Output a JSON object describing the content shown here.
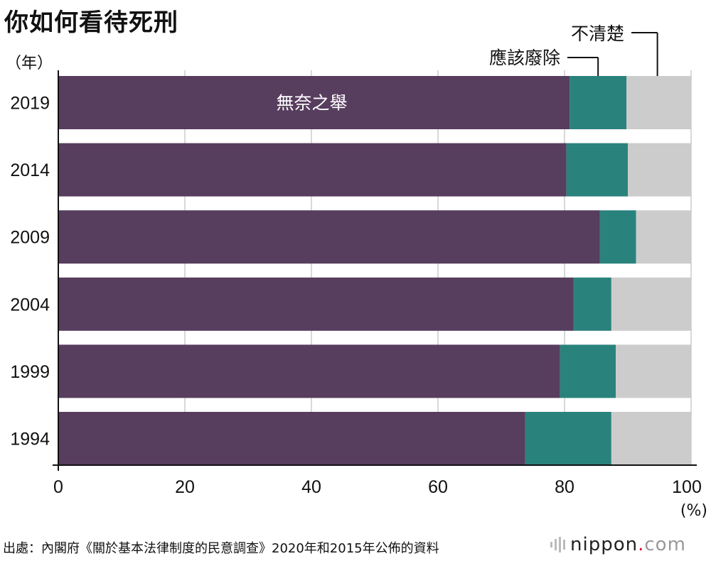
{
  "title": "你如何看待死刑",
  "chart_data": {
    "type": "bar",
    "orientation": "horizontal",
    "stacked": true,
    "categories": [
      "2019",
      "2014",
      "2009",
      "2004",
      "1999",
      "1994"
    ],
    "series": [
      {
        "name": "無奈之舉",
        "color": "#573d5e",
        "values": [
          80.8,
          80.3,
          85.6,
          81.4,
          79.3,
          73.8
        ]
      },
      {
        "name": "應該廢除",
        "color": "#2a827c",
        "values": [
          9.0,
          9.7,
          5.7,
          6.0,
          8.8,
          13.6
        ]
      },
      {
        "name": "不清楚",
        "color": "#cccccc",
        "values": [
          10.2,
          10.0,
          8.7,
          12.6,
          11.9,
          12.6
        ]
      }
    ],
    "xlim": [
      0,
      100
    ],
    "xticks": [
      "0",
      "20",
      "40",
      "60",
      "80",
      "100"
    ],
    "xlabel": "(%)",
    "ylabel": "（年）",
    "grid": true
  },
  "source": "出處：內閣府《關於基本法律制度的民意調查》2020年和2015年公佈的資料",
  "logo": {
    "name": "nippon",
    "dot": ".",
    "tld": "com"
  },
  "colors": {
    "grid": "#cccccc",
    "axis": "#111111",
    "label_in_bar": "#ffffff"
  }
}
